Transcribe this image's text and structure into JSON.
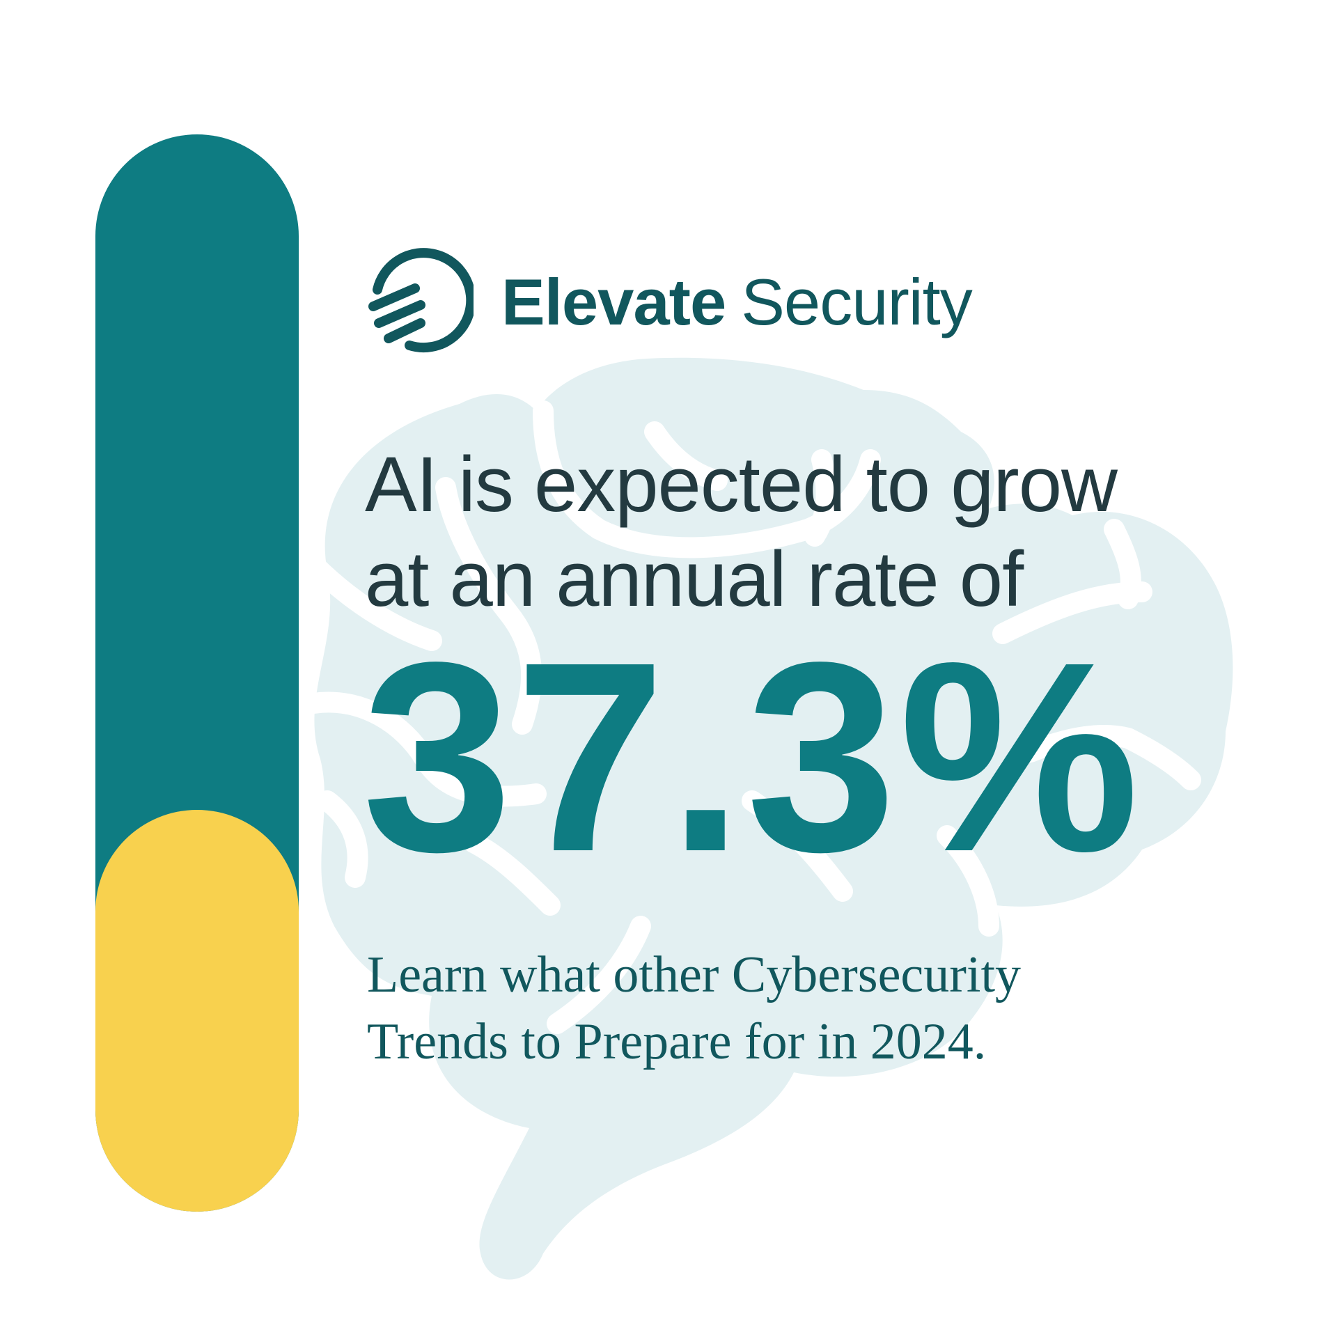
{
  "brand": {
    "name_bold": "Elevate",
    "name_light": "Security",
    "icon": "elevate-security-logo-icon"
  },
  "headline": {
    "line1": "AI is expected to grow",
    "line2": "at an annual rate of"
  },
  "stat": {
    "value": "37.3%"
  },
  "cta": {
    "line1": "Learn what other Cybersecurity",
    "line2": "Trends to Prepare for in 2024."
  },
  "meter": {
    "fill_fraction": 0.373
  },
  "colors": {
    "teal": "#0e7c82",
    "dark_teal": "#11575d",
    "yellow": "#f8d14e",
    "text_dark": "#233a40",
    "brain_bg": "#e3f0f2"
  }
}
